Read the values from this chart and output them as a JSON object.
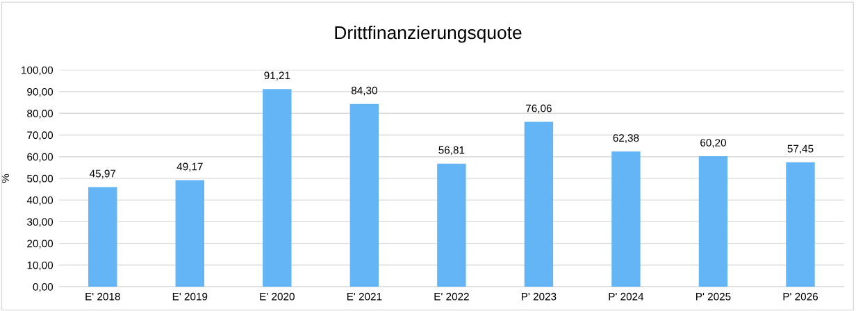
{
  "chart_data": {
    "type": "bar",
    "title": "Drittfinanzierungsquote",
    "ylabel": "%",
    "categories": [
      "E' 2018",
      "E' 2019",
      "E' 2020",
      "E' 2021",
      "E' 2022",
      "P' 2023",
      "P' 2024",
      "P' 2025",
      "P' 2026"
    ],
    "values": [
      45.97,
      49.17,
      91.21,
      84.3,
      56.81,
      76.06,
      62.38,
      60.2,
      57.45
    ],
    "value_labels": [
      "45,97",
      "49,17",
      "91,21",
      "84,30",
      "56,81",
      "76,06",
      "62,38",
      "60,20",
      "57,45"
    ],
    "color": "#63b5f6",
    "ylim": [
      0,
      100
    ],
    "yticks": [
      {
        "value": 0,
        "label": "0,00"
      },
      {
        "value": 10,
        "label": "10,00"
      },
      {
        "value": 20,
        "label": "20,00"
      },
      {
        "value": 30,
        "label": "30,00"
      },
      {
        "value": 40,
        "label": "40,00"
      },
      {
        "value": 50,
        "label": "50,00"
      },
      {
        "value": 60,
        "label": "60,00"
      },
      {
        "value": 70,
        "label": "70,00"
      },
      {
        "value": 80,
        "label": "80,00"
      },
      {
        "value": 90,
        "label": "90,00"
      },
      {
        "value": 100,
        "label": "100,00"
      }
    ],
    "grid": "y"
  }
}
